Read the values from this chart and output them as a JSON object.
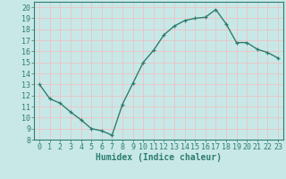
{
  "x": [
    0,
    1,
    2,
    3,
    4,
    5,
    6,
    7,
    8,
    9,
    10,
    11,
    12,
    13,
    14,
    15,
    16,
    17,
    18,
    19,
    20,
    21,
    22,
    23
  ],
  "y": [
    13.0,
    11.7,
    11.3,
    10.5,
    9.8,
    9.0,
    8.8,
    8.4,
    11.2,
    13.1,
    15.0,
    16.1,
    17.5,
    18.3,
    18.8,
    19.0,
    19.1,
    19.8,
    18.5,
    16.8,
    16.8,
    16.2,
    15.9,
    15.4
  ],
  "line_color": "#2e7d6e",
  "marker": "+",
  "markersize": 3.5,
  "linewidth": 1.0,
  "xlabel": "Humidex (Indice chaleur)",
  "bg_color": "#c8e8e8",
  "grid_color": "#e8c8c8",
  "xlim": [
    -0.5,
    23.5
  ],
  "ylim": [
    8,
    20.5
  ],
  "xticks": [
    0,
    1,
    2,
    3,
    4,
    5,
    6,
    7,
    8,
    9,
    10,
    11,
    12,
    13,
    14,
    15,
    16,
    17,
    18,
    19,
    20,
    21,
    22,
    23
  ],
  "yticks": [
    8,
    9,
    10,
    11,
    12,
    13,
    14,
    15,
    16,
    17,
    18,
    19,
    20
  ],
  "xlabel_fontsize": 7,
  "tick_fontsize": 6
}
